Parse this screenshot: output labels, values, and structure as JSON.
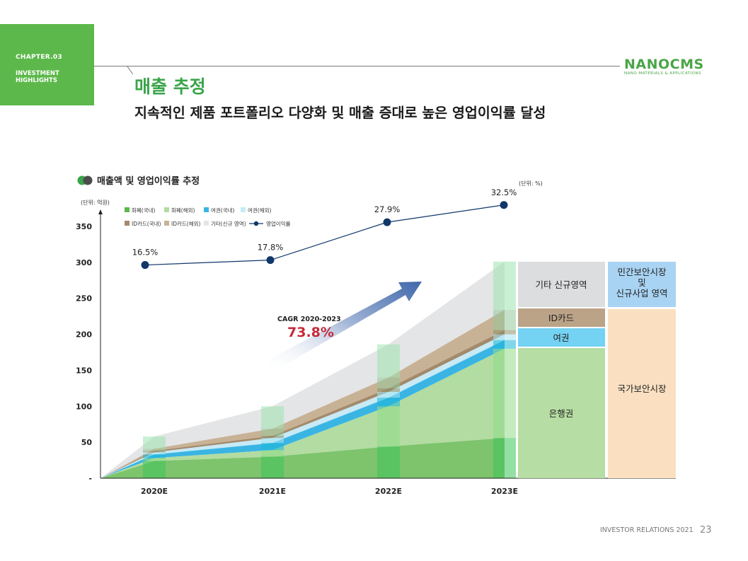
{
  "header": {
    "chapter": "CHAPTER.03",
    "section": "INVESTMENT HIGHLIGHTS",
    "logo": "NANOCMS",
    "logo_sub": "NANO MATERIALS & APPLICATIONS",
    "title": "매출 추정",
    "subtitle": "지속적인 제품 포트폴리오 다양화 및 매출 증대로 높은 영업이익률 달성"
  },
  "chart_data": {
    "type": "area",
    "title": "매출액 및 영업이익률 추정",
    "unit_left": "(단위: 억원)",
    "unit_right": "(단위: %)",
    "categories": [
      "2020E",
      "2021E",
      "2022E",
      "2023E"
    ],
    "ylim": [
      0,
      350
    ],
    "yticks": [
      0,
      50,
      100,
      150,
      200,
      250,
      300,
      350
    ],
    "ytick_labels": [
      "-",
      "50",
      "100",
      "150",
      "200",
      "250",
      "300",
      "350"
    ],
    "series": [
      {
        "name": "화폐(국내)",
        "color": "#7dc46c",
        "values": [
          24,
          30,
          44,
          56
        ]
      },
      {
        "name": "화폐(해외)",
        "color": "#b2dca2",
        "values": [
          4,
          9,
          56,
          124
        ]
      },
      {
        "name": "여권(국내)",
        "color": "#3ab5e3",
        "values": [
          5,
          10,
          12,
          12
        ]
      },
      {
        "name": "여권(해외)",
        "color": "#c7eaf6",
        "values": [
          3,
          7,
          8,
          8
        ]
      },
      {
        "name": "ID카드(국내)",
        "color": "#a38a6b",
        "values": [
          2,
          3,
          5,
          6
        ]
      },
      {
        "name": "ID카드(해외)",
        "color": "#c8b296",
        "values": [
          3,
          10,
          15,
          28
        ]
      },
      {
        "name": "기타(신규 영역)",
        "color": "#e4e5e6",
        "values": [
          17,
          31,
          46,
          67
        ]
      }
    ],
    "line": {
      "name": "영업이익률",
      "color": "#10376a",
      "values": [
        16.5,
        17.8,
        27.9,
        32.5
      ],
      "labels": [
        "16.5%",
        "17.8%",
        "27.9%",
        "32.5%"
      ]
    },
    "annotation": {
      "label": "CAGR 2020-2023",
      "value": "73.8%"
    },
    "side_blocks": {
      "left": [
        "기타 신규영역",
        "ID카드",
        "여권",
        "은행권"
      ],
      "right": [
        "민간보안시장\n및\n신규사업 영역",
        "국가보안시장"
      ]
    }
  },
  "footer": {
    "label": "INVESTOR RELATIONS 2021",
    "page": "23"
  }
}
